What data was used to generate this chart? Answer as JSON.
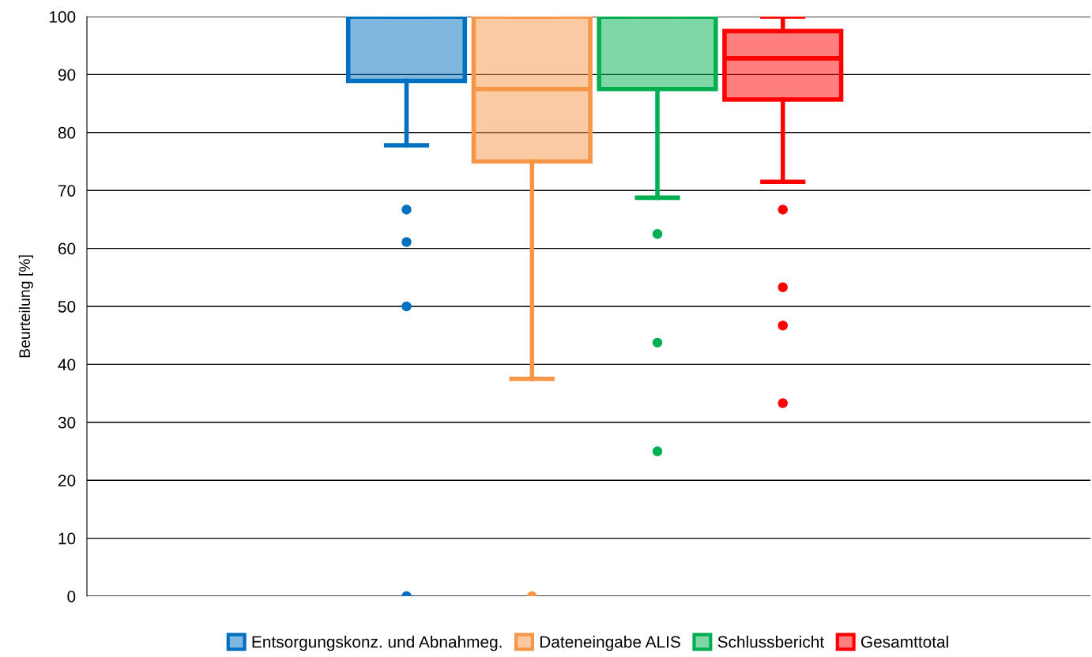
{
  "chart_data": {
    "type": "box",
    "ylabel": "Beurteilung [%]",
    "categories": [
      null
    ],
    "series": [
      {
        "name": "Entsorgungskonz. und Abnahmeg.",
        "color": "#0070c0",
        "boxes": [
          {
            "low": 77.8,
            "q1": 88.9,
            "median": 100,
            "q3": 100,
            "high": 100,
            "outliers": [
              66.7,
              61.1,
              50,
              0
            ]
          }
        ]
      },
      {
        "name": "Dateneingabe ALIS",
        "color": "#f79646",
        "boxes": [
          {
            "low": 37.5,
            "q1": 75,
            "median": 87.5,
            "q3": 100,
            "high": 100,
            "outliers": [
              0
            ]
          }
        ]
      },
      {
        "name": "Schlussbericht",
        "color": "#00b050",
        "boxes": [
          {
            "low": 68.75,
            "q1": 87.5,
            "median": 100,
            "q3": 100,
            "high": 100,
            "outliers": [
              62.5,
              43.75,
              25
            ]
          }
        ]
      },
      {
        "name": "Gesamttotal",
        "color": "#ff0000",
        "boxes": [
          {
            "low": 71.5,
            "q1": 85.7,
            "median": 92.8,
            "q3": 97.5,
            "high": 100,
            "outliers": [
              66.7,
              53.3,
              46.7,
              33.3
            ]
          }
        ]
      }
    ],
    "ylim": [
      0,
      100
    ],
    "yticks": [
      0,
      10,
      20,
      30,
      40,
      50,
      60,
      70,
      80,
      90,
      100
    ],
    "grid": "y",
    "legend": "bottom",
    "tick_labels": "y",
    "marker": "circle"
  }
}
